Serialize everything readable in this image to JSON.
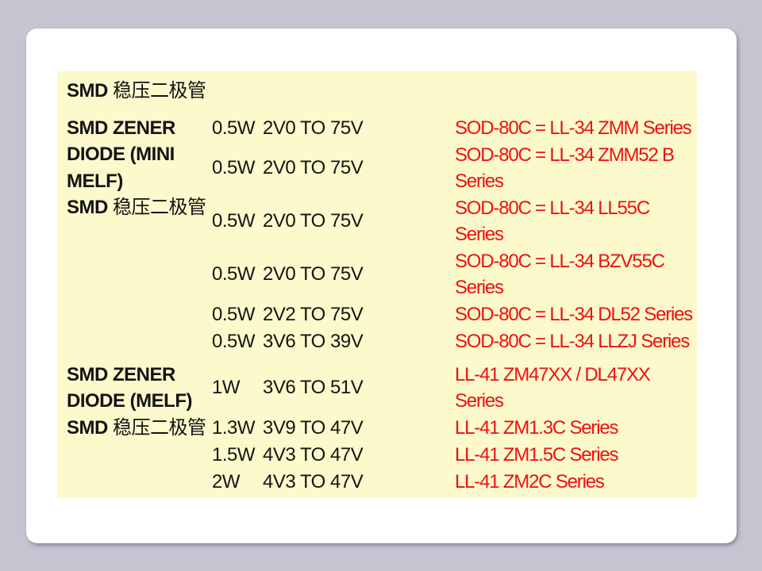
{
  "colors": {
    "page_bg": "#c7c3d1",
    "slide_bg": "#ffffff",
    "panel_bg": "#fcf9cc",
    "series_red": "#ee1111",
    "text_black": "#141414"
  },
  "header": {
    "prefix": "SMD",
    "cjk": "稳压二极管"
  },
  "sections": [
    {
      "name_en": "SMD ZENER DIODE (MINI MELF)",
      "name_prefix": "SMD",
      "name_cjk": "稳压二极管",
      "rows": [
        {
          "power": "0.5W",
          "range": "2V0 TO 75V",
          "series": "SOD-80C = LL-34 ZMM Series"
        },
        {
          "power": "0.5W",
          "range": "2V0 TO 75V",
          "series": "SOD-80C = LL-34 ZMM52 B Series"
        },
        {
          "power": "0.5W",
          "range": "2V0 TO 75V",
          "series": "SOD-80C = LL-34 LL55C Series"
        },
        {
          "power": "0.5W",
          "range": "2V0 TO 75V",
          "series": "SOD-80C = LL-34 BZV55C Series"
        },
        {
          "power": "0.5W",
          "range": "2V2 TO 75V",
          "series": "SOD-80C = LL-34 DL52 Series"
        },
        {
          "power": "0.5W",
          "range": "3V6 TO 39V",
          "series": "SOD-80C = LL-34 LLZJ Series"
        }
      ]
    },
    {
      "name_en": "SMD ZENER DIODE (MELF)",
      "name_prefix": "SMD",
      "name_cjk": "稳压二极管",
      "rows": [
        {
          "power": "1W",
          "range": "3V6 TO 51V",
          "series": "LL-41 ZM47XX / DL47XX Series"
        },
        {
          "power": "1.3W",
          "range": "3V9 TO 47V",
          "series": "LL-41 ZM1.3C Series"
        },
        {
          "power": "1.5W",
          "range": "4V3 TO 47V",
          "series": "LL-41 ZM1.5C Series"
        },
        {
          "power": "2W",
          "range": "4V3 TO 47V",
          "series": "LL-41 ZM2C Series"
        }
      ]
    }
  ]
}
